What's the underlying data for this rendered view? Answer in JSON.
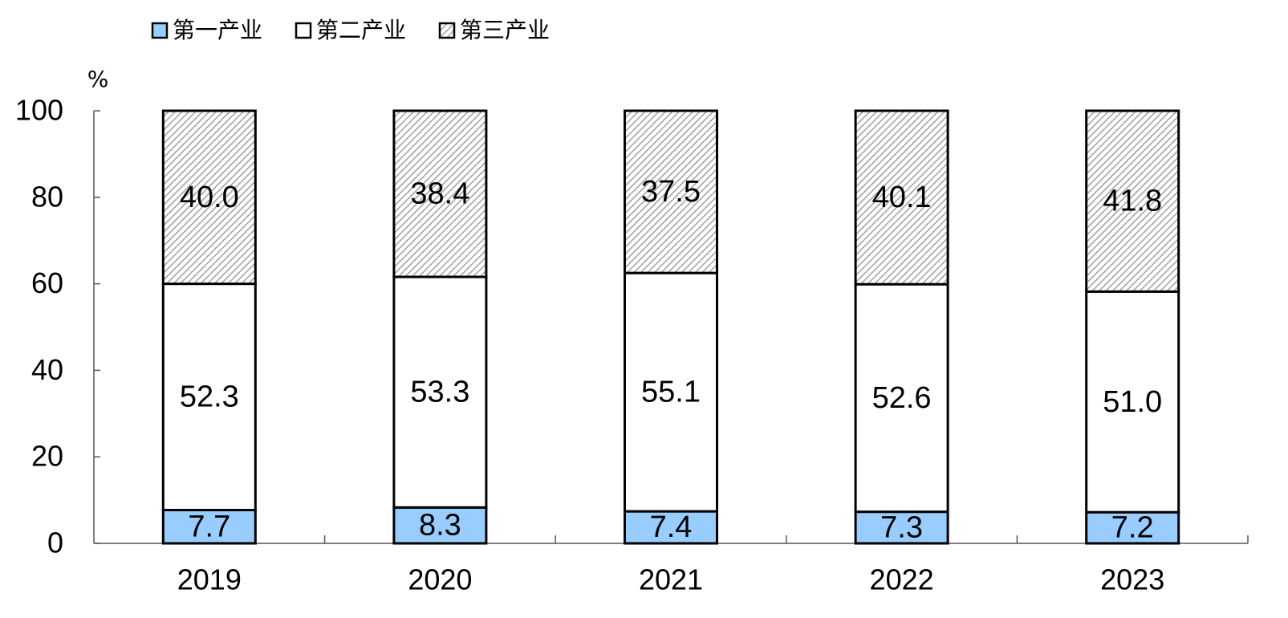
{
  "chart_data": {
    "type": "stacked_bar",
    "y_label": "%",
    "categories": [
      "2019",
      "2020",
      "2021",
      "2022",
      "2023"
    ],
    "series": [
      {
        "name": "第一产业",
        "color": "#99ccff",
        "values": [
          7.7,
          8.3,
          7.4,
          7.3,
          7.2
        ]
      },
      {
        "name": "第二产业",
        "color": "#ffffff",
        "values": [
          52.3,
          53.3,
          55.1,
          52.6,
          51.0
        ],
        "value_labels": [
          "52.3",
          "53.3",
          "55.1",
          "52.6",
          "51.0"
        ]
      },
      {
        "name": "第三产业",
        "color": "#a0a0a0",
        "hatch": true,
        "values": [
          40.0,
          38.4,
          37.5,
          40.1,
          41.8
        ],
        "value_labels": [
          "40.0",
          "38.4",
          "37.5",
          "40.1",
          "41.8"
        ]
      }
    ],
    "ylim": [
      0,
      100
    ],
    "yticks": [
      0,
      20,
      40,
      60,
      80,
      100
    ],
    "legend": "top-left"
  }
}
